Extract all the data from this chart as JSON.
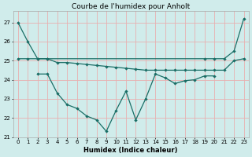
{
  "title": "Courbe de l'humidex pour Anholt",
  "xlabel": "Humidex (Indice chaleur)",
  "xlim": [
    -0.5,
    23.5
  ],
  "ylim": [
    21,
    27.6
  ],
  "yticks": [
    21,
    22,
    23,
    24,
    25,
    26,
    27
  ],
  "xticks": [
    0,
    1,
    2,
    3,
    4,
    5,
    6,
    7,
    8,
    9,
    10,
    11,
    12,
    13,
    14,
    15,
    16,
    17,
    18,
    19,
    20,
    21,
    22,
    23
  ],
  "bg_color": "#d0eceb",
  "line_color": "#1a6e66",
  "grid_color": "#b8dbd9",
  "line1_x": [
    0,
    1,
    2,
    3,
    19,
    20,
    21,
    22,
    23
  ],
  "line1_y": [
    27.0,
    26.0,
    25.1,
    25.1,
    25.1,
    25.1,
    25.1,
    25.5,
    27.2
  ],
  "line2_x": [
    0,
    1,
    2,
    3,
    4,
    5,
    6,
    7,
    8,
    9,
    10,
    11,
    12,
    13,
    14,
    15,
    16,
    17,
    18,
    19,
    20,
    21,
    22,
    23
  ],
  "line2_y": [
    25.1,
    25.1,
    25.1,
    25.1,
    24.9,
    24.9,
    24.85,
    24.8,
    24.75,
    24.7,
    24.65,
    24.6,
    24.55,
    24.5,
    24.5,
    24.5,
    24.5,
    24.5,
    24.5,
    24.5,
    24.5,
    24.5,
    25.0,
    25.1
  ],
  "line3_x": [
    2,
    3,
    4,
    5,
    6,
    7,
    8,
    9,
    10,
    11,
    12,
    13,
    14,
    15,
    16,
    17,
    18,
    19,
    20
  ],
  "line3_y": [
    24.3,
    24.3,
    23.3,
    22.7,
    22.5,
    22.1,
    21.9,
    21.3,
    22.4,
    23.4,
    21.9,
    23.0,
    24.3,
    24.1,
    23.8,
    23.95,
    24.0,
    24.2,
    24.2
  ],
  "figsize": [
    3.2,
    2.0
  ],
  "dpi": 100,
  "title_fontsize": 6.5,
  "label_fontsize": 6.0,
  "tick_fontsize": 5.0
}
